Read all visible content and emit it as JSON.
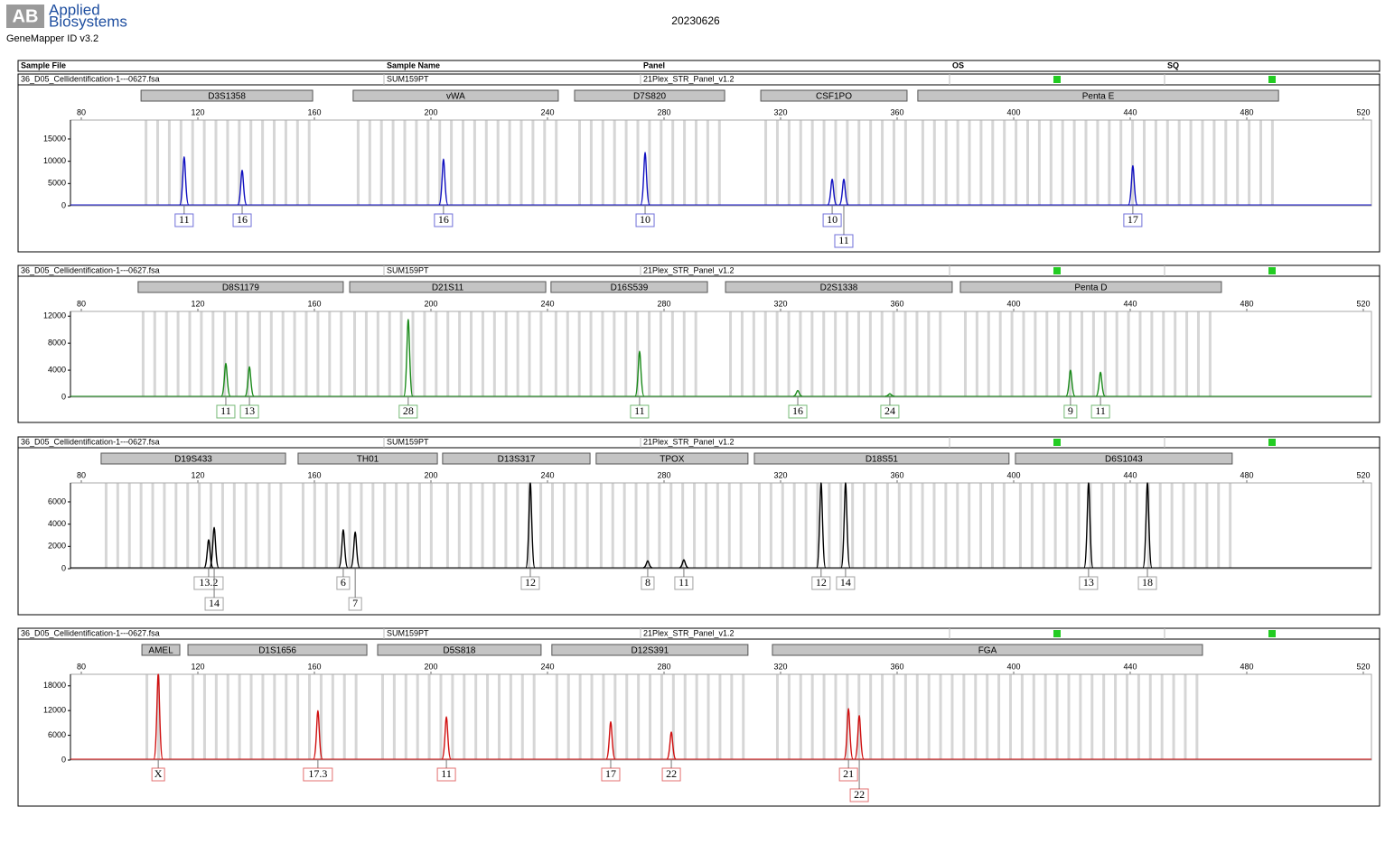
{
  "header": {
    "logo_mark": "AB",
    "logo_line1": "Applied",
    "logo_line2": "Biosystems",
    "software": "GeneMapper ID v3.2",
    "date": "20230626"
  },
  "columns": [
    "Sample File",
    "Sample Name",
    "Panel",
    "OS",
    "SQ"
  ],
  "chart_data": [
    {
      "type": "peak",
      "sample_file": "36_D05_Cellidentification-1---0627.fsa",
      "sample_name": "SUM159PT",
      "panel": "21Plex_STR_Panel_v1.2",
      "markers": [
        {
          "name": "D3S1358",
          "range": [
            100.5,
            159.4
          ]
        },
        {
          "name": "vWA",
          "range": [
            173.3,
            243.7
          ]
        },
        {
          "name": "D7S820",
          "range": [
            249.3,
            300.8
          ]
        },
        {
          "name": "CSF1PO",
          "range": [
            313.2,
            363.4
          ]
        },
        {
          "name": "Penta E",
          "range": [
            367.1,
            490.9
          ]
        }
      ],
      "x": [
        115.3,
        135.2,
        204.3,
        273.5,
        337.7,
        341.7,
        440.9
      ],
      "values": [
        11000,
        8000,
        10500,
        12000,
        6000,
        6000,
        9000
      ],
      "labels": [
        "11",
        "16",
        "16",
        "10",
        "10",
        "11",
        "17"
      ],
      "color": "#1010c0",
      "xlim": [
        80,
        520
      ],
      "xticks": [
        80,
        120,
        160,
        200,
        240,
        280,
        320,
        360,
        400,
        440,
        480,
        520
      ],
      "ylim": [
        0,
        19250
      ],
      "yticks": [
        0,
        5000,
        10000,
        15000
      ]
    },
    {
      "type": "peak",
      "sample_file": "36_D05_Cellidentification-1---0627.fsa",
      "sample_name": "SUM159PT",
      "panel": "21Plex_STR_Panel_v1.2",
      "markers": [
        {
          "name": "D8S1179",
          "range": [
            99.5,
            169.9
          ]
        },
        {
          "name": "D21S11",
          "range": [
            172.1,
            239.4
          ]
        },
        {
          "name": "D16S539",
          "range": [
            241.2,
            294.9
          ]
        },
        {
          "name": "D2S1338",
          "range": [
            301.1,
            378.9
          ]
        },
        {
          "name": "Penta D",
          "range": [
            381.7,
            471.3
          ]
        }
      ],
      "x": [
        129.6,
        137.7,
        192.2,
        271.6,
        325.9,
        357.5,
        419.5,
        429.8
      ],
      "values": [
        5000,
        4500,
        11500,
        6800,
        1000,
        500,
        4000,
        3700
      ],
      "labels": [
        "11",
        "13",
        "28",
        "11",
        "16",
        "24",
        "9",
        "11"
      ],
      "color": "#1a8a1a",
      "xlim": [
        80,
        520
      ],
      "xticks": [
        80,
        120,
        160,
        200,
        240,
        280,
        320,
        360,
        400,
        440,
        480,
        520
      ],
      "ylim": [
        0,
        12700
      ],
      "yticks": [
        0,
        4000,
        8000,
        12000
      ]
    },
    {
      "type": "peak",
      "sample_file": "36_D05_Cellidentification-1---0627.fsa",
      "sample_name": "SUM159PT",
      "panel": "21Plex_STR_Panel_v1.2",
      "markers": [
        {
          "name": "D19S433",
          "range": [
            86.8,
            150.1
          ]
        },
        {
          "name": "TH01",
          "range": [
            154.4,
            202.2
          ]
        },
        {
          "name": "D13S317",
          "range": [
            204.0,
            254.6
          ]
        },
        {
          "name": "TPOX",
          "range": [
            256.7,
            308.8
          ]
        },
        {
          "name": "D18S51",
          "range": [
            311.0,
            398.4
          ]
        },
        {
          "name": "D6S1043",
          "range": [
            400.6,
            475.0
          ]
        }
      ],
      "x": [
        123.7,
        125.6,
        169.9,
        174.0,
        234.1,
        274.4,
        286.8,
        333.9,
        342.3,
        425.7,
        445.9
      ],
      "values": [
        2600,
        3700,
        3500,
        3300,
        7700,
        700,
        800,
        7700,
        7700,
        7700,
        7700
      ],
      "labels": [
        "13.2",
        "14",
        "6",
        "7",
        "12",
        "8",
        "11",
        "12",
        "14",
        "13",
        "18"
      ],
      "color": "#000000",
      "xlim": [
        80,
        520
      ],
      "xticks": [
        80,
        120,
        160,
        200,
        240,
        280,
        320,
        360,
        400,
        440,
        480,
        520
      ],
      "ylim": [
        0,
        7700
      ],
      "yticks": [
        0,
        2000,
        4000,
        6000
      ]
    },
    {
      "type": "peak",
      "sample_file": "36_D05_Cellidentification-1---0627.fsa",
      "sample_name": "SUM159PT",
      "panel": "21Plex_STR_Panel_v1.2",
      "markers": [
        {
          "name": "AMEL",
          "range": [
            100.8,
            113.8
          ]
        },
        {
          "name": "D1S1656",
          "range": [
            116.6,
            178.0
          ]
        },
        {
          "name": "D5S818",
          "range": [
            181.7,
            237.8
          ]
        },
        {
          "name": "D12S391",
          "range": [
            241.5,
            308.8
          ]
        },
        {
          "name": "FGA",
          "range": [
            317.2,
            464.8
          ]
        }
      ],
      "x": [
        106.4,
        161.2,
        205.3,
        261.7,
        282.5,
        343.3,
        347.0
      ],
      "values": [
        20800,
        12000,
        10500,
        9300,
        6800,
        12500,
        10800
      ],
      "labels": [
        "X",
        "17.3",
        "11",
        "17",
        "22",
        "21",
        "22"
      ],
      "color": "#d01010",
      "xlim": [
        80,
        520
      ],
      "xticks": [
        80,
        120,
        160,
        200,
        240,
        280,
        320,
        360,
        400,
        440,
        480,
        520
      ],
      "ylim": [
        0,
        20800
      ],
      "yticks": [
        0,
        6000,
        12000,
        18000
      ]
    }
  ]
}
